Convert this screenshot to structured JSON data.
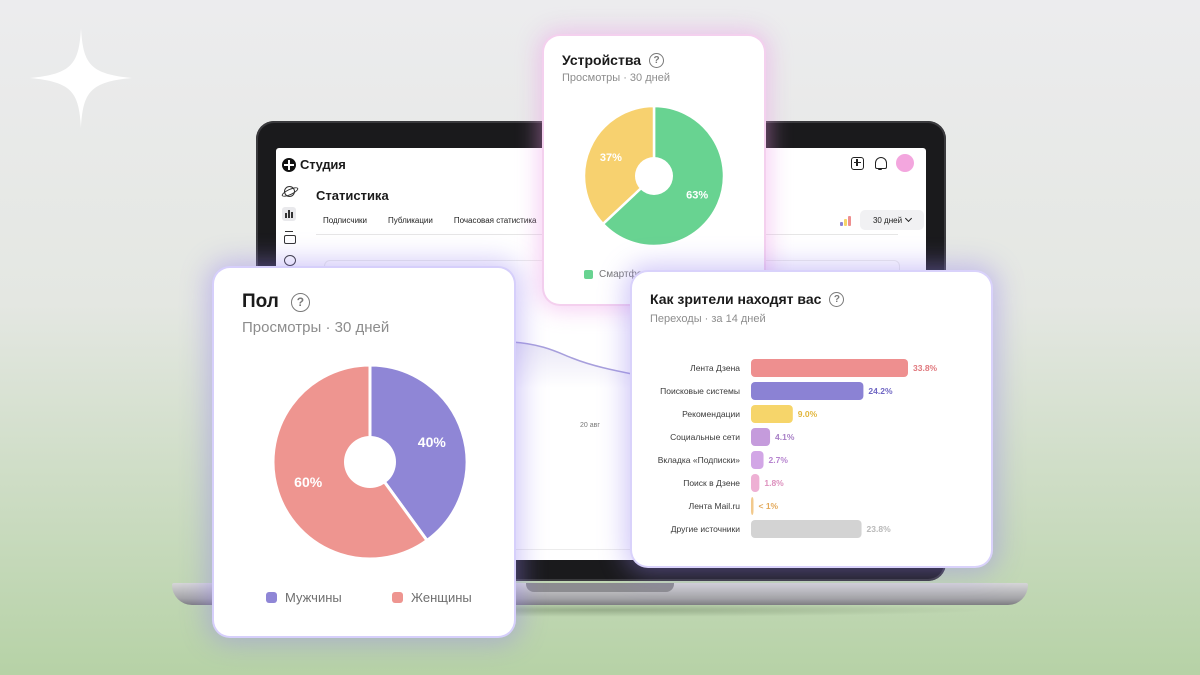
{
  "colors": {
    "green": "#68d391",
    "yellow": "#f7d16f",
    "purple": "#8f86d6",
    "salmon": "#ee9590",
    "bar_red": "#ee8f8f",
    "bar_purple": "#8b82d4",
    "bar_yellow": "#f6d56a",
    "bar_violet": "#c59bdc",
    "bar_lavender": "#d2a6e6",
    "bar_pink": "#eeb0d4",
    "bar_orange": "#f2c98c",
    "bar_grey": "#d3d3d3",
    "trend_line": "#a79fdc"
  },
  "icons": {
    "sparkle": "sparkle-icon",
    "help": "question-circle-icon",
    "add": "plus-square-icon",
    "bell": "bell-icon",
    "planet": "planet-icon",
    "stats": "bar-chart-icon",
    "box": "archive-icon",
    "chat": "chat-bubble-icon"
  },
  "app": {
    "name": "Студия",
    "page_title": "Статистика",
    "tabs": [
      "Подписчики",
      "Публикации",
      "Почасовая статистика"
    ],
    "period": "30 дней",
    "axis_tick": "20 авг"
  },
  "help_symbol": "?",
  "devices_card": {
    "title": "Устройства",
    "subtitle": "Просмотры · 30 дней",
    "legend_visible": "Смартфоны"
  },
  "gender_card": {
    "title": "Пол",
    "subtitle": "Просмотры · 30 дней",
    "legend": [
      "Мужчины",
      "Женщины"
    ]
  },
  "sources_card": {
    "title": "Как зрители находят вас",
    "subtitle": "Переходы · за 14 дней"
  },
  "chart_data": [
    {
      "type": "pie",
      "title": "Устройства",
      "subtitle": "Просмотры · 30 дней",
      "slices": [
        {
          "name": "Смартфоны",
          "value": 63,
          "label": "63%",
          "color": "#68d391"
        },
        {
          "name": "",
          "value": 37,
          "label": "37%",
          "color": "#f7d16f"
        }
      ]
    },
    {
      "type": "pie",
      "title": "Пол",
      "subtitle": "Просмотры · 30 дней",
      "slices": [
        {
          "name": "Мужчины",
          "value": 40,
          "label": "40%",
          "color": "#8f86d6"
        },
        {
          "name": "Женщины",
          "value": 60,
          "label": "60%",
          "color": "#ee9590"
        }
      ]
    },
    {
      "type": "bar",
      "orientation": "horizontal",
      "title": "Как зрители находят вас",
      "subtitle": "Переходы · за 14 дней",
      "categories": [
        "Лента Дзена",
        "Поисковые системы",
        "Рекомендации",
        "Социальные сети",
        "Вкладка «Подписки»",
        "Поиск в Дзене",
        "Лента Mail.ru",
        "Другие источники"
      ],
      "values": [
        33.8,
        24.2,
        9.0,
        4.1,
        2.7,
        1.8,
        0.5,
        23.8
      ],
      "labels": [
        "33.8%",
        "24.2%",
        "9.0%",
        "4.1%",
        "2.7%",
        "1.8%",
        "< 1%",
        "23.8%"
      ],
      "colors": [
        "#ee8f8f",
        "#8b82d4",
        "#f6d56a",
        "#c59bdc",
        "#d2a6e6",
        "#eeb0d4",
        "#f2c98c",
        "#d3d3d3"
      ],
      "value_colors": [
        "#e0787d",
        "#6f66c3",
        "#e2b63c",
        "#a77fc6",
        "#b683cf",
        "#dd8fbd",
        "#e3a95a",
        "#b9b9b9"
      ],
      "xlim": [
        0,
        40
      ]
    }
  ]
}
